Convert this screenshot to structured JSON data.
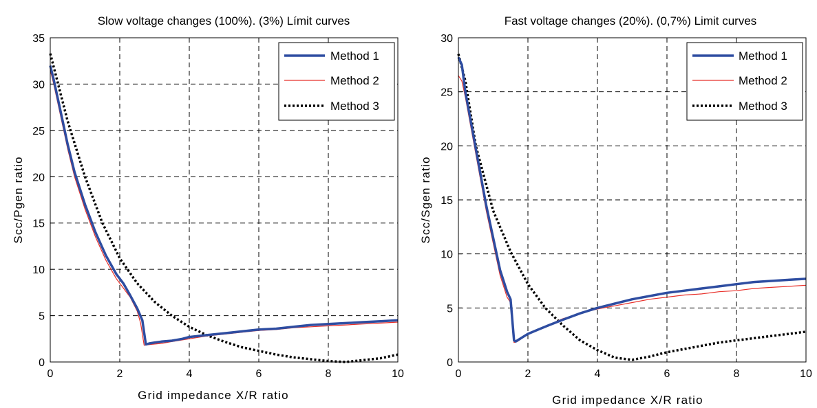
{
  "chart_data": [
    {
      "type": "line",
      "title": "Slow voltage changes (100%). (3%) Límit curves",
      "xlabel": "Grid impedance X/R ratio",
      "ylabel": "Scc/Pgen ratio",
      "xlim": [
        0,
        10
      ],
      "ylim": [
        0,
        35
      ],
      "xticks": [
        0,
        2,
        4,
        6,
        8,
        10
      ],
      "xtick_labels": [
        "0",
        "2",
        "4",
        "6",
        "8",
        "10"
      ],
      "yticks": [
        0,
        5,
        10,
        15,
        20,
        25,
        30,
        35
      ],
      "ytick_labels": [
        "0",
        "5",
        "10",
        "15",
        "20",
        "25",
        "30",
        "35"
      ],
      "grid": true,
      "legend_position": "top-right",
      "series": [
        {
          "name": "Method 1",
          "color": "#2e4da1",
          "style": "solid-thick",
          "x": [
            0,
            0.1,
            0.3,
            0.5,
            0.7,
            1.0,
            1.3,
            1.6,
            1.9,
            2.1,
            2.3,
            2.5,
            2.65,
            2.75,
            2.85,
            3.0,
            3.2,
            3.5,
            3.8,
            4.0,
            4.5,
            5.0,
            5.5,
            6.0,
            6.5,
            7.0,
            7.5,
            8.0,
            8.5,
            9.0,
            9.5,
            10.0
          ],
          "y": [
            32.0,
            30.5,
            27.0,
            23.5,
            20.5,
            17.0,
            14.0,
            11.5,
            9.5,
            8.5,
            7.2,
            5.8,
            4.5,
            1.9,
            2.0,
            2.1,
            2.2,
            2.3,
            2.5,
            2.7,
            2.9,
            3.1,
            3.3,
            3.5,
            3.6,
            3.8,
            4.0,
            4.1,
            4.2,
            4.3,
            4.4,
            4.5
          ]
        },
        {
          "name": "Method 2",
          "color": "#e8302a",
          "style": "solid-thin",
          "x": [
            0,
            0.1,
            0.3,
            0.5,
            0.7,
            1.0,
            1.3,
            1.6,
            1.9,
            2.0,
            2.3,
            2.5,
            2.6,
            2.7,
            2.9,
            3.2,
            3.5,
            4.0,
            4.5,
            5.0,
            5.5,
            6.0,
            6.5,
            7.0,
            7.5,
            8.0,
            8.5,
            9.0,
            9.5,
            10.0
          ],
          "y": [
            31.5,
            30.0,
            26.5,
            23.0,
            20.0,
            16.5,
            13.5,
            11.0,
            9.0,
            8.5,
            7.0,
            5.5,
            4.2,
            1.8,
            1.9,
            2.0,
            2.2,
            2.5,
            2.8,
            3.0,
            3.2,
            3.4,
            3.5,
            3.7,
            3.8,
            3.9,
            4.0,
            4.1,
            4.2,
            4.3
          ]
        },
        {
          "name": "Method 3",
          "color": "#000000",
          "style": "dotted",
          "x": [
            0,
            0.5,
            1.0,
            1.5,
            2.0,
            2.5,
            3.0,
            3.5,
            4.0,
            4.5,
            5.0,
            5.5,
            6.0,
            6.5,
            7.0,
            7.5,
            8.0,
            8.5,
            9.0,
            9.5,
            10.0
          ],
          "y": [
            33.3,
            26.0,
            20.0,
            15.0,
            11.2,
            8.5,
            6.5,
            5.0,
            3.8,
            2.9,
            2.2,
            1.6,
            1.2,
            0.8,
            0.5,
            0.3,
            0.1,
            0.0,
            0.2,
            0.4,
            0.8
          ]
        }
      ]
    },
    {
      "type": "line",
      "title": "Fast voltage changes (20%). (0,7%) Limit curves",
      "xlabel": "Grid impedance X/R ratio",
      "ylabel": "Scc/Sgen ratio",
      "xlim": [
        0,
        10
      ],
      "ylim": [
        0,
        30
      ],
      "xticks": [
        0,
        2,
        4,
        6,
        8,
        10
      ],
      "xtick_labels": [
        "0",
        "2",
        "4",
        "6",
        "8",
        "10"
      ],
      "yticks": [
        0,
        5,
        10,
        15,
        20,
        25,
        30
      ],
      "ytick_labels": [
        "0",
        "5",
        "10",
        "15",
        "20",
        "25",
        "30"
      ],
      "grid": true,
      "legend_position": "top-right",
      "series": [
        {
          "name": "Method 1",
          "color": "#2e4da1",
          "style": "solid-thick",
          "x": [
            0,
            0.1,
            0.2,
            0.4,
            0.6,
            0.8,
            1.0,
            1.2,
            1.4,
            1.5,
            1.6,
            1.65,
            1.8,
            2.0,
            2.3,
            2.6,
            3.0,
            3.5,
            4.0,
            4.5,
            5.0,
            5.5,
            6.0,
            6.5,
            7.0,
            7.5,
            8.0,
            8.5,
            9.0,
            9.5,
            10.0
          ],
          "y": [
            28.2,
            27.5,
            25.0,
            21.5,
            18.0,
            14.5,
            11.5,
            8.5,
            6.5,
            5.8,
            2.0,
            1.9,
            2.2,
            2.6,
            3.0,
            3.4,
            3.9,
            4.5,
            5.0,
            5.4,
            5.8,
            6.1,
            6.4,
            6.6,
            6.8,
            7.0,
            7.2,
            7.4,
            7.5,
            7.6,
            7.7
          ]
        },
        {
          "name": "Method 2",
          "color": "#e8302a",
          "style": "solid-thin",
          "x": [
            0,
            0.1,
            0.2,
            0.4,
            0.6,
            0.8,
            1.0,
            1.2,
            1.4,
            1.5,
            1.6,
            1.7,
            2.0,
            2.5,
            3.0,
            3.5,
            4.0,
            4.5,
            5.0,
            5.5,
            6.0,
            6.5,
            7.0,
            7.5,
            8.0,
            8.5,
            9.0,
            9.5,
            10.0
          ],
          "y": [
            26.5,
            26.0,
            24.5,
            21.0,
            17.5,
            14.0,
            11.0,
            8.0,
            6.0,
            5.5,
            1.8,
            1.9,
            2.6,
            3.3,
            4.0,
            4.5,
            4.9,
            5.2,
            5.5,
            5.8,
            6.0,
            6.2,
            6.3,
            6.5,
            6.6,
            6.8,
            6.9,
            7.0,
            7.1
          ]
        },
        {
          "name": "Method 3",
          "color": "#000000",
          "style": "dotted",
          "x": [
            0,
            0.2,
            0.5,
            1.0,
            1.5,
            2.0,
            2.5,
            3.0,
            3.5,
            4.0,
            4.5,
            5.0,
            5.5,
            6.0,
            6.5,
            7.0,
            7.5,
            8.0,
            8.5,
            9.0,
            9.5,
            10.0
          ],
          "y": [
            28.5,
            26.0,
            20.0,
            14.0,
            10.2,
            7.2,
            5.0,
            3.4,
            2.0,
            1.1,
            0.4,
            0.2,
            0.5,
            0.9,
            1.2,
            1.5,
            1.8,
            2.0,
            2.2,
            2.4,
            2.6,
            2.8
          ]
        }
      ]
    }
  ]
}
